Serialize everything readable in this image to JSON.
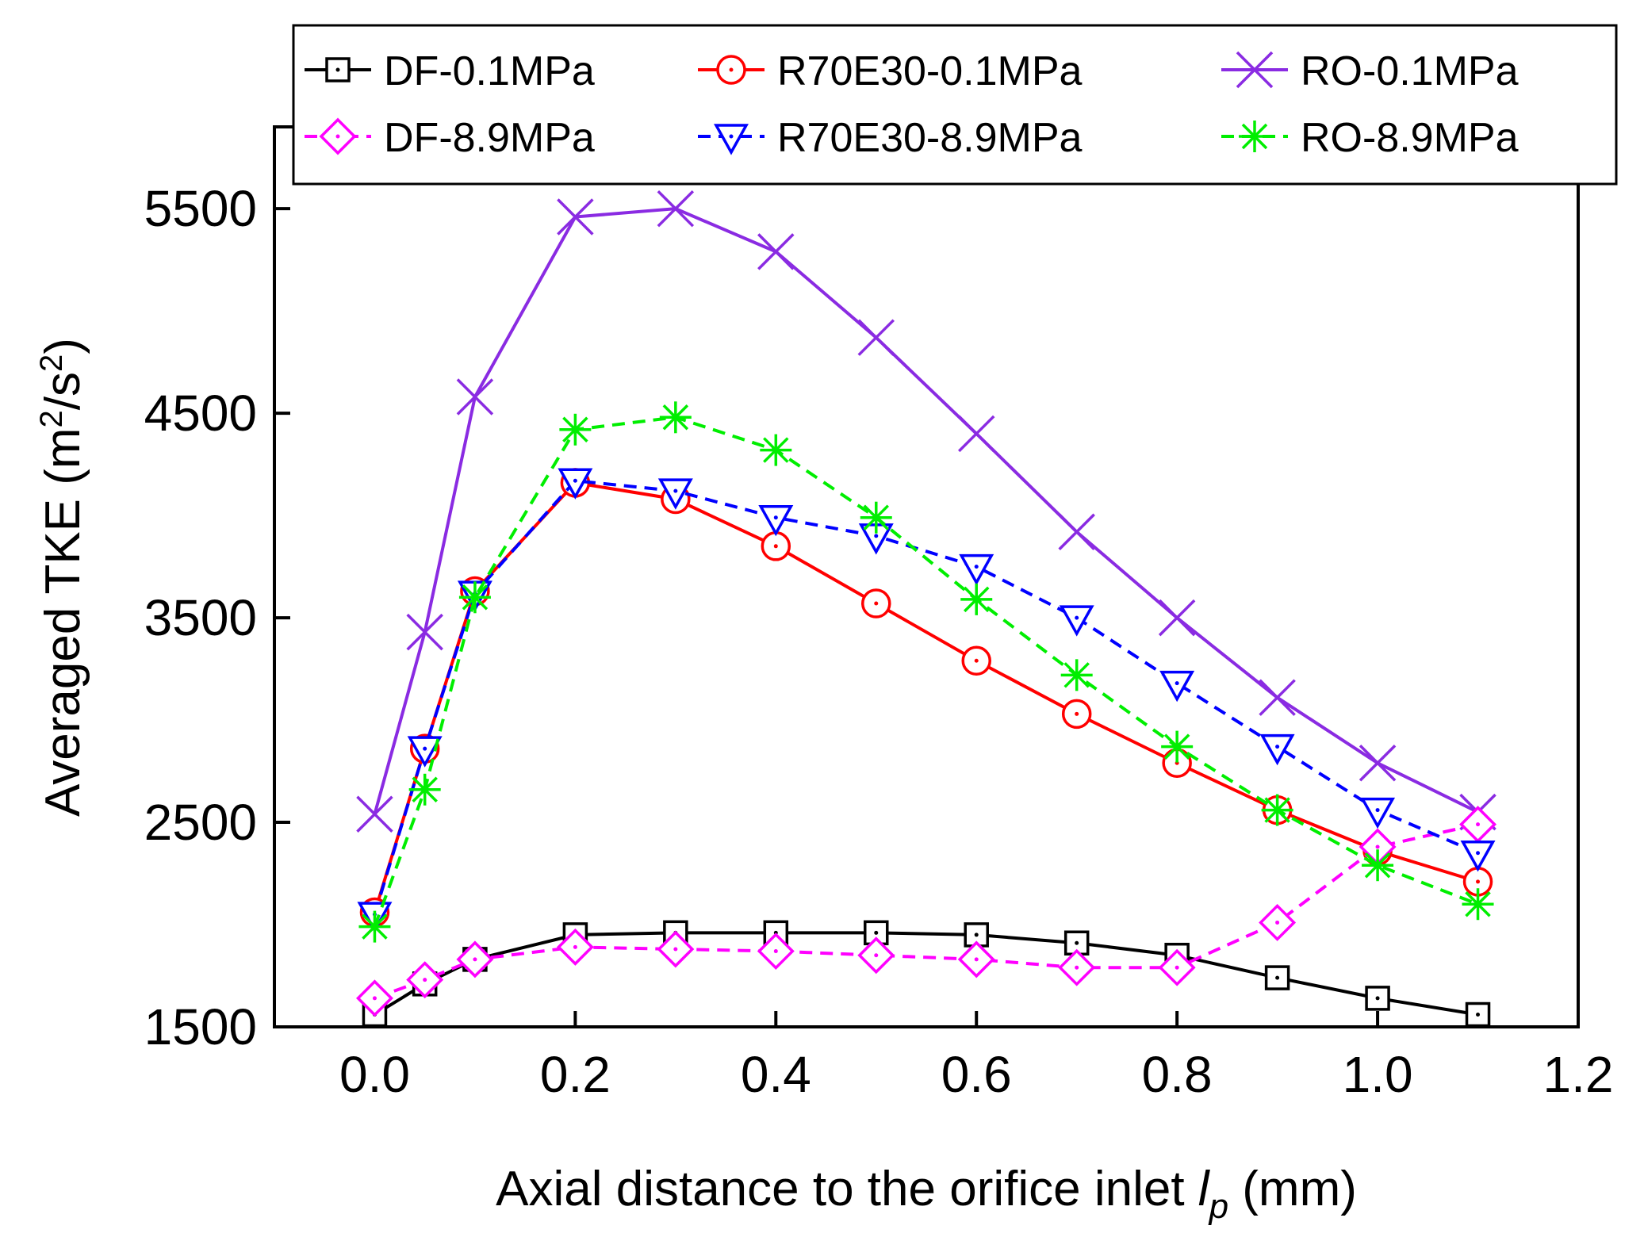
{
  "chart_data": {
    "type": "line",
    "title": "",
    "xlabel_main": "Axial distance to the orifice inlet ",
    "xlabel_var": "l",
    "xlabel_sub": "p",
    "xlabel_unit": " (mm)",
    "ylabel_main": "Averaged TKE (m",
    "ylabel_sup1": "2",
    "ylabel_mid": "/s",
    "ylabel_sup2": "2",
    "ylabel_end": ")",
    "xlim": [
      -0.1,
      1.2
    ],
    "ylim": [
      1500,
      5900
    ],
    "x_ticks": [
      0.0,
      0.2,
      0.4,
      0.6,
      0.8,
      1.0,
      1.2
    ],
    "x_tick_labels": [
      "0.0",
      "0.2",
      "0.4",
      "0.6",
      "0.8",
      "1.0",
      "1.2"
    ],
    "y_ticks": [
      1500,
      2500,
      3500,
      4500,
      5500
    ],
    "y_tick_labels": [
      "1500",
      "2500",
      "3500",
      "4500",
      "5500"
    ],
    "x": [
      0.0,
      0.05,
      0.1,
      0.2,
      0.3,
      0.4,
      0.5,
      0.6,
      0.7,
      0.8,
      0.9,
      1.0,
      1.1
    ],
    "legend_position": "top",
    "series": [
      {
        "name": "DF-0.1MPa",
        "color": "#000000",
        "marker": "square",
        "dash": "solid",
        "values": [
          1560,
          1710,
          1830,
          1950,
          1960,
          1960,
          1960,
          1950,
          1910,
          1850,
          1740,
          1640,
          1560
        ]
      },
      {
        "name": "R70E30-0.1MPa",
        "color": "#ff0000",
        "marker": "circle",
        "dash": "solid",
        "values": [
          2060,
          2860,
          3630,
          4160,
          4080,
          3850,
          3570,
          3290,
          3030,
          2790,
          2560,
          2360,
          2210
        ]
      },
      {
        "name": "RO-0.1MPa",
        "color": "#8a2be2",
        "marker": "x",
        "dash": "solid",
        "values": [
          2540,
          3430,
          4580,
          5460,
          5500,
          5290,
          4870,
          4400,
          3920,
          3500,
          3110,
          2790,
          2550
        ]
      },
      {
        "name": "DF-8.9MPa",
        "color": "#ff00ff",
        "marker": "diamond",
        "dash": "dashed",
        "values": [
          1640,
          1730,
          1830,
          1890,
          1880,
          1870,
          1850,
          1830,
          1790,
          1790,
          2010,
          2380,
          2490
        ]
      },
      {
        "name": "R70E30-8.9MPa",
        "color": "#0000ff",
        "marker": "triangle-down",
        "dash": "dashed",
        "values": [
          2050,
          2860,
          3620,
          4170,
          4120,
          3990,
          3900,
          3750,
          3500,
          3180,
          2870,
          2560,
          2350
        ]
      },
      {
        "name": "RO-8.9MPa",
        "color": "#00ee00",
        "marker": "asterisk",
        "dash": "dashed",
        "values": [
          1990,
          2660,
          3600,
          4420,
          4480,
          4320,
          3990,
          3590,
          3220,
          2870,
          2560,
          2290,
          2100
        ]
      }
    ]
  }
}
